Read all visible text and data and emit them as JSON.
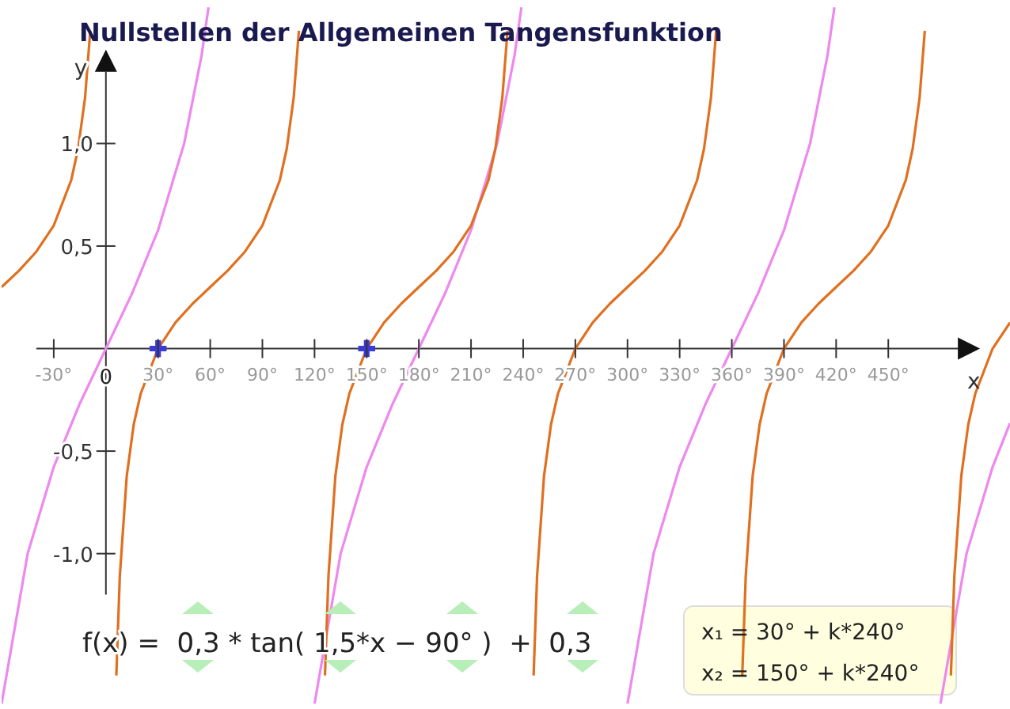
{
  "chart_data": {
    "type": "line",
    "title": "Nullstellen der Allgemeinen Tangensfunktion",
    "xlabel": "x",
    "ylabel": "y",
    "xlim": [
      -60,
      520
    ],
    "ylim": [
      -1.75,
      1.7
    ],
    "xticks": [
      {
        "value": -30,
        "label": "-30°"
      },
      {
        "value": 0,
        "label": "0"
      },
      {
        "value": 30,
        "label": "30°"
      },
      {
        "value": 60,
        "label": "60°"
      },
      {
        "value": 90,
        "label": "90°"
      },
      {
        "value": 120,
        "label": "120°"
      },
      {
        "value": 150,
        "label": "150°"
      },
      {
        "value": 180,
        "label": "180°"
      },
      {
        "value": 210,
        "label": "210°"
      },
      {
        "value": 240,
        "label": "240°"
      },
      {
        "value": 270,
        "label": "270°"
      },
      {
        "value": 300,
        "label": "300°"
      },
      {
        "value": 330,
        "label": "330°"
      },
      {
        "value": 360,
        "label": "360°"
      },
      {
        "value": 390,
        "label": "390°"
      },
      {
        "value": 420,
        "label": "420°"
      },
      {
        "value": 450,
        "label": "450°"
      }
    ],
    "yticks": [
      {
        "value": -1,
        "label": "-1,0"
      },
      {
        "value": -0.5,
        "label": "-0,5"
      },
      {
        "value": 0.5,
        "label": "0,5"
      },
      {
        "value": 1,
        "label": "1,0"
      }
    ],
    "grid": false,
    "legend": false,
    "marker": "none",
    "line_style": "solid",
    "series": [
      {
        "color": "#ee88ee",
        "x": [
          -60,
          -45,
          -30,
          -15,
          0,
          15,
          30,
          45,
          55,
          59,
          90,
          120,
          135,
          150,
          165,
          180,
          195,
          210,
          225,
          235,
          239,
          270,
          300,
          315,
          330,
          345,
          360,
          375,
          390,
          405,
          415,
          419,
          450,
          480,
          495,
          510,
          520
        ],
        "values": [
          -1.732,
          -1,
          -0.577,
          -0.268,
          0,
          0.268,
          0.577,
          1,
          1.428,
          1.664,
          null,
          -1.732,
          -1,
          -0.577,
          -0.268,
          0,
          0.268,
          0.577,
          1,
          1.428,
          1.664,
          null,
          -1.732,
          -1,
          -0.577,
          -0.268,
          0,
          0.268,
          0.577,
          1,
          1.428,
          1.664,
          null,
          -1.732,
          -1,
          -0.577,
          -0.364
        ]
      },
      {
        "color": "#e07020",
        "x": [
          -60,
          -50,
          -40,
          -30,
          -20,
          -16,
          -12,
          -9,
          0,
          6,
          8,
          12,
          16,
          20,
          30,
          40,
          50,
          60,
          70,
          80,
          90,
          100,
          104,
          108,
          111,
          120,
          126,
          128,
          132,
          136,
          140,
          150,
          160,
          170,
          180,
          190,
          200,
          210,
          220,
          224,
          228,
          231,
          240,
          246,
          248,
          252,
          256,
          260,
          270,
          280,
          290,
          300,
          310,
          320,
          330,
          340,
          344,
          348,
          351,
          360,
          366,
          368,
          372,
          376,
          380,
          390,
          400,
          410,
          420,
          430,
          440,
          450,
          460,
          464,
          468,
          471,
          480,
          486,
          488,
          492,
          496,
          500,
          510,
          520
        ],
        "values": [
          0.3,
          0.38,
          0.473,
          0.6,
          0.82,
          0.974,
          1.223,
          1.55,
          null,
          -1.594,
          -1.11,
          -0.62,
          -0.37,
          -0.22,
          0,
          0.127,
          0.22,
          0.3,
          0.38,
          0.473,
          0.6,
          0.82,
          0.974,
          1.223,
          1.55,
          null,
          -1.594,
          -1.11,
          -0.62,
          -0.37,
          -0.22,
          0,
          0.127,
          0.22,
          0.3,
          0.38,
          0.473,
          0.6,
          0.82,
          0.974,
          1.223,
          1.55,
          null,
          -1.594,
          -1.11,
          -0.62,
          -0.37,
          -0.22,
          0,
          0.127,
          0.22,
          0.3,
          0.38,
          0.473,
          0.6,
          0.82,
          0.974,
          1.223,
          1.55,
          null,
          -1.594,
          -1.11,
          -0.62,
          -0.37,
          -0.22,
          0,
          0.127,
          0.22,
          0.3,
          0.38,
          0.473,
          0.6,
          0.82,
          0.974,
          1.223,
          1.55,
          null,
          -1.594,
          -1.11,
          -0.62,
          -0.37,
          -0.22,
          0,
          0.127
        ]
      },
      {
        "type": "scatter",
        "color": "#3b3bd6",
        "marker": "cross",
        "x": [
          30,
          150
        ],
        "values": [
          0,
          0
        ]
      }
    ],
    "annotations": [
      "f(x) =  0,3 * tan( 1,5*x − 90° )  +  0,3",
      "x₁ = 30° + k*240°",
      "x₂ = 150° + k*240°"
    ]
  }
}
